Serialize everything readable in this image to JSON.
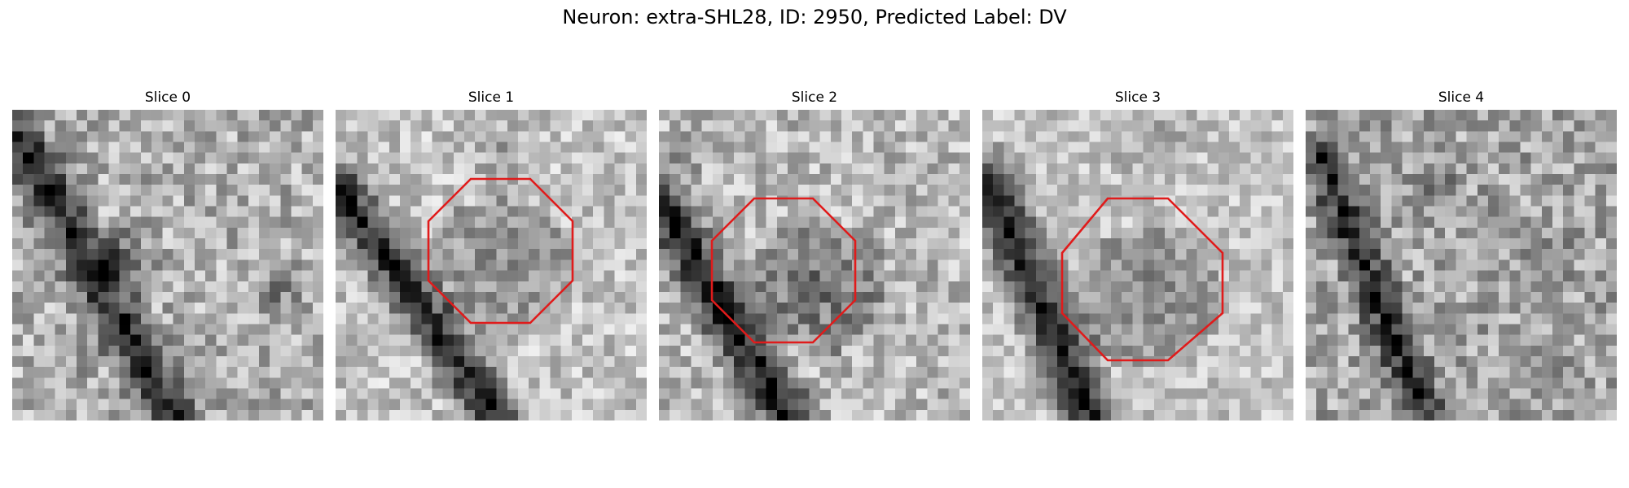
{
  "figure": {
    "title": "Neuron: extra-SHL28, ID: 2950, Predicted Label: DV"
  },
  "slices": [
    {
      "title": "Slice 0",
      "has_outline": false
    },
    {
      "title": "Slice 1",
      "has_outline": true
    },
    {
      "title": "Slice 2",
      "has_outline": true
    },
    {
      "title": "Slice 3",
      "has_outline": true
    },
    {
      "title": "Slice 4",
      "has_outline": false
    }
  ],
  "colors": {
    "outline": "#e01b1b",
    "colormap": "gray"
  }
}
